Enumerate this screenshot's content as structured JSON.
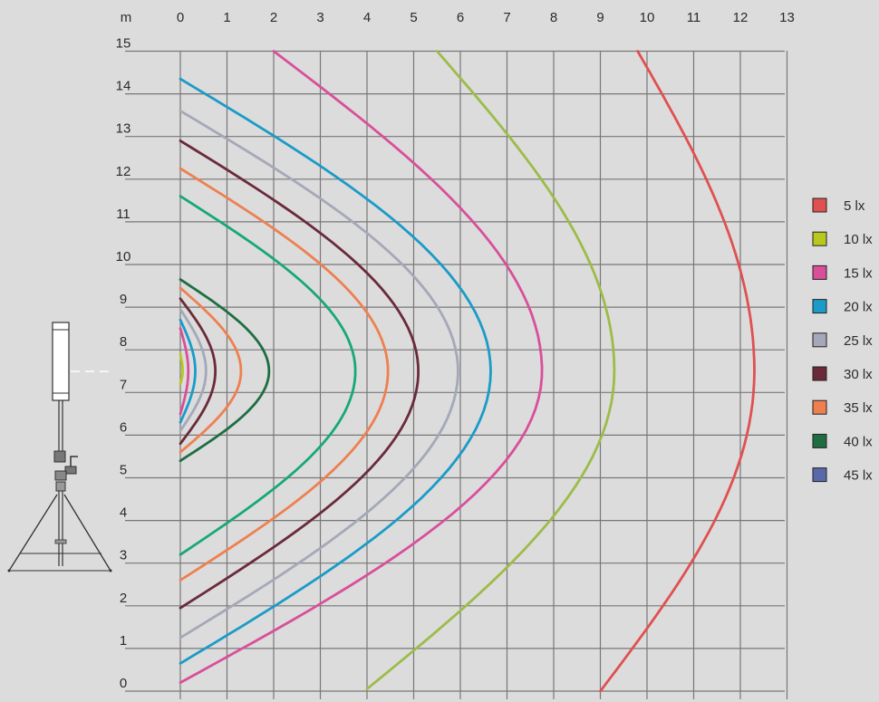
{
  "chart_data": {
    "type": "contour",
    "unit_label": "m",
    "x_ticks": [
      "0",
      "1",
      "2",
      "3",
      "4",
      "5",
      "6",
      "7",
      "8",
      "9",
      "10",
      "11",
      "12",
      "13"
    ],
    "y_ticks": [
      "0",
      "1",
      "2",
      "3",
      "4",
      "5",
      "6",
      "7",
      "8",
      "9",
      "10",
      "11",
      "12",
      "13",
      "14",
      "15"
    ],
    "xlim": [
      0,
      13
    ],
    "ylim": [
      0,
      15
    ],
    "grid": true,
    "legend_position": "right",
    "light_source": {
      "x": 0,
      "y": 7.5
    },
    "series": [
      {
        "name": "5 lx",
        "color": "#e05050",
        "reach": 12.3,
        "y_bottom": 0.0,
        "y_top": 15.0,
        "x_at_bottom": 9.0,
        "x_at_top": 9.8
      },
      {
        "name": "10 lx",
        "color": "#b8c81e",
        "reach": 0.05,
        "y_bottom": 7.2,
        "y_top": 7.9
      },
      {
        "name": "15 lx",
        "color": "#d94f9a",
        "reach": 0.17,
        "y_bottom": 6.5,
        "y_top": 8.5
      },
      {
        "name": "20 lx",
        "color": "#1a9bc8",
        "reach": 0.32,
        "y_bottom": 6.3,
        "y_top": 8.7
      },
      {
        "name": "25 lx",
        "color": "#a4a8b8",
        "reach": 0.55,
        "y_bottom": 6.1,
        "y_top": 8.95
      },
      {
        "name": "30 lx",
        "color": "#6a2a3a",
        "reach": 0.75,
        "y_bottom": 5.8,
        "y_top": 9.2
      },
      {
        "name": "35 lx",
        "color": "#ee8050",
        "reach": 1.3,
        "y_bottom": 5.6,
        "y_top": 9.45
      },
      {
        "name": "40 lx",
        "color": "#1e6e42",
        "reach": 1.9,
        "y_bottom": 5.4,
        "y_top": 9.65
      },
      {
        "name": "45 lx",
        "color": "#5868a8"
      }
    ],
    "outer_contours": [
      {
        "color": "#16a878",
        "reach": 3.75,
        "y_bottom": 3.2,
        "y_top": 11.6
      },
      {
        "color": "#ee8050",
        "reach": 4.45,
        "y_bottom": 2.6,
        "y_top": 12.25
      },
      {
        "color": "#6a2a3a",
        "reach": 5.1,
        "y_bottom": 1.95,
        "y_top": 12.9
      },
      {
        "color": "#a4a8b8",
        "reach": 5.95,
        "y_bottom": 1.25,
        "y_top": 13.6
      },
      {
        "color": "#1a9bc8",
        "reach": 6.65,
        "y_bottom": 0.65,
        "y_top": 14.35
      },
      {
        "color": "#d94f9a",
        "reach": 7.75,
        "y_bottom": 0.2,
        "y_top": 15.0,
        "x_at_top": 2.0
      },
      {
        "color": "#9cbc48",
        "reach": 9.3,
        "y_bottom": 0.05,
        "y_top": 15.0,
        "x_at_bottom": 4.0,
        "x_at_top": 5.5
      }
    ]
  }
}
